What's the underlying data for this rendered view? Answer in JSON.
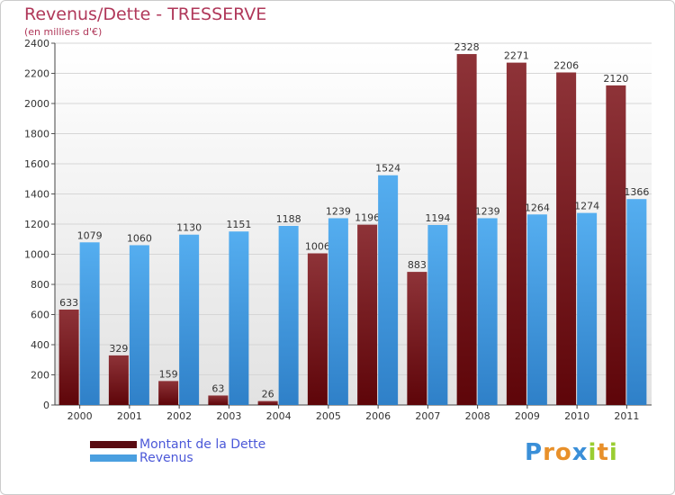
{
  "title": "Revenus/Dette - TRESSERVE",
  "subtitle": "(en milliers d'€)",
  "chart_data": {
    "type": "bar",
    "categories": [
      "2000",
      "2001",
      "2002",
      "2003",
      "2004",
      "2005",
      "2006",
      "2007",
      "2008",
      "2009",
      "2010",
      "2011"
    ],
    "series": [
      {
        "name": "Montant de la Dette",
        "color": "#7a1c22",
        "values": [
          633,
          329,
          159,
          63,
          26,
          1006,
          1196,
          883,
          2328,
          2271,
          2206,
          2120
        ]
      },
      {
        "name": "Revenus",
        "color": "#4a9fe0",
        "values": [
          1079,
          1060,
          1130,
          1151,
          1188,
          1239,
          1524,
          1194,
          1239,
          1264,
          1274,
          1366
        ]
      }
    ],
    "ylim": [
      0,
      2400
    ],
    "yticks": [
      0,
      200,
      400,
      600,
      800,
      1000,
      1200,
      1400,
      1600,
      1800,
      2000,
      2200,
      2400
    ],
    "grid": true,
    "legend": "bottom-left"
  },
  "logo": {
    "letters": [
      {
        "ch": "P",
        "color": "#3a8fd8"
      },
      {
        "ch": "r",
        "color": "#e8902a"
      },
      {
        "ch": "o",
        "color": "#e8902a"
      },
      {
        "ch": "x",
        "color": "#3a8fd8"
      },
      {
        "ch": "i",
        "color": "#9acd32"
      },
      {
        "ch": "t",
        "color": "#e8902a"
      },
      {
        "ch": "i",
        "color": "#9acd32"
      }
    ]
  }
}
